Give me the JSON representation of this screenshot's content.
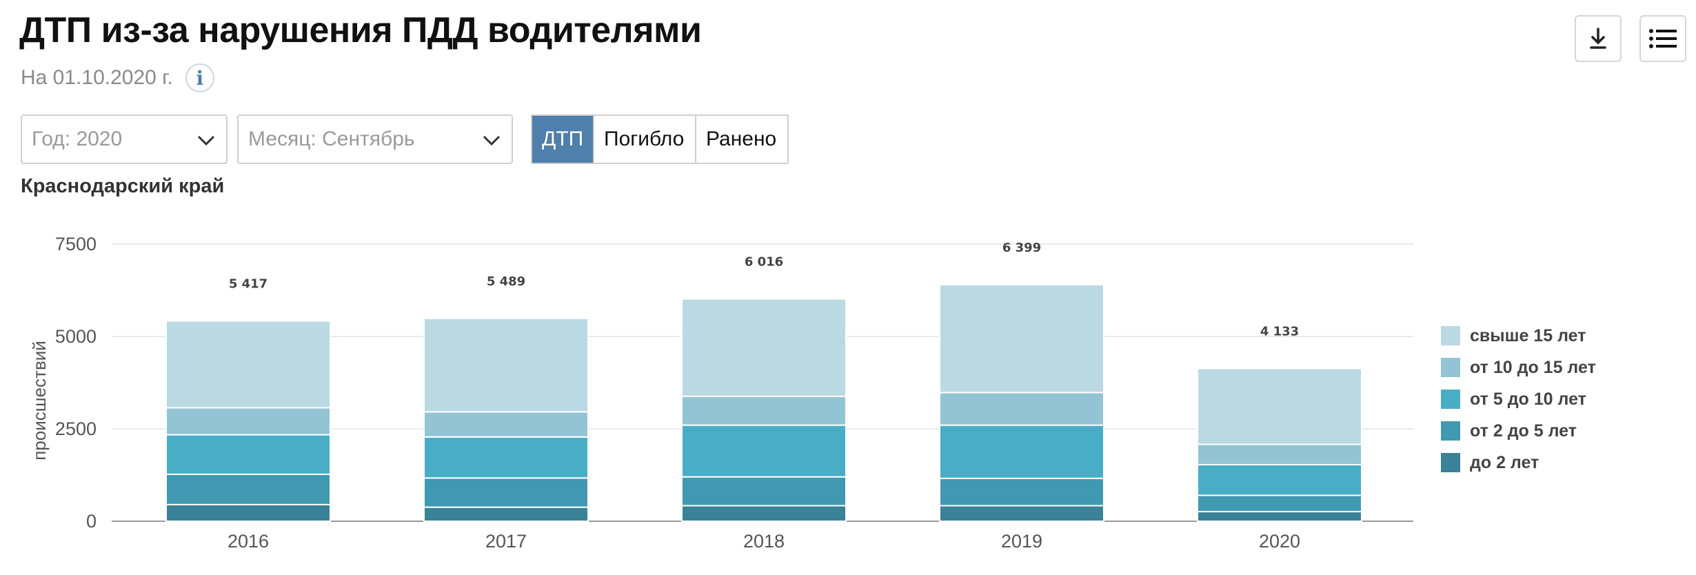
{
  "header": {
    "title": "ДТП из-за нарушения ПДД водителями",
    "subtitle": "На 01.10.2020 г.",
    "info_icon": "info-icon",
    "download_icon": "download-icon",
    "menu_icon": "menu-icon"
  },
  "filters": {
    "year_label": "Год: 2020",
    "month_label": "Месяц: Сентябрь",
    "tabs": [
      {
        "label": "ДТП",
        "active": true
      },
      {
        "label": "Погибло",
        "active": false
      },
      {
        "label": "Ранено",
        "active": false
      }
    ]
  },
  "region": "Краснодарский край",
  "chart_data": {
    "type": "bar",
    "stacked": true,
    "categories": [
      "2016",
      "2017",
      "2018",
      "2019",
      "2020"
    ],
    "ylabel": "происшествий",
    "ylim": [
      0,
      7500
    ],
    "yticks": [
      "0",
      "2500",
      "5000",
      "7500"
    ],
    "ytick_values": [
      0,
      2500,
      5000,
      7500
    ],
    "grid": true,
    "legend_position": "right",
    "totals": [
      "5 417",
      "5 489",
      "6 016",
      "6 399",
      "4 133"
    ],
    "series": [
      {
        "name": "до 2 лет",
        "color": "#3a8297",
        "values": [
          450,
          380,
          420,
          420,
          260
        ]
      },
      {
        "name": "от 2 до 5 лет",
        "color": "#4099b0",
        "values": [
          820,
          790,
          780,
          740,
          440
        ]
      },
      {
        "name": "от 5 до 10 лет",
        "color": "#4aadc6",
        "values": [
          1070,
          1110,
          1400,
          1440,
          830
        ]
      },
      {
        "name": "от 10 до 15 лет",
        "color": "#93c4d4",
        "values": [
          730,
          680,
          780,
          880,
          550
        ]
      },
      {
        "name": "свыше 15 лет",
        "color": "#bbd9e3",
        "values": [
          2347,
          2529,
          2636,
          2919,
          2053
        ]
      }
    ]
  }
}
